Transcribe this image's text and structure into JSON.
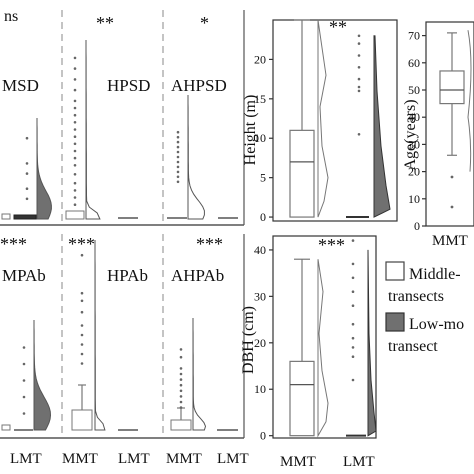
{
  "colors": {
    "mmt": "#ffffff",
    "lmt": "#707070",
    "outline": "#777777",
    "text": "#111111"
  },
  "chart_data": [
    {
      "panel": "MSD",
      "type": "violin-box",
      "significance": "ns",
      "partial": true,
      "xticks": [],
      "mmt_points": [],
      "lmt_points": [
        0.2,
        0.3,
        0.45,
        0.55,
        0.8
      ]
    },
    {
      "panel": "HPSD",
      "type": "violin-box",
      "significance": "**",
      "xticks": [],
      "mmt_points": [
        0.08,
        0.12,
        0.16,
        0.2,
        0.25,
        0.3,
        0.34,
        0.38,
        0.42,
        0.46,
        0.5,
        0.54,
        0.58,
        0.62,
        0.66,
        0.72,
        0.78,
        0.84,
        0.9
      ],
      "lmt_points": []
    },
    {
      "panel": "AHPSD",
      "type": "violin-box",
      "significance": "*",
      "xticks": [],
      "mmt_points": [
        0.3,
        0.34,
        0.38,
        0.42,
        0.46,
        0.5,
        0.54,
        0.58,
        0.62,
        0.66,
        0.7
      ],
      "lmt_points": []
    },
    {
      "panel": "Height",
      "type": "violin-box",
      "significance": "**",
      "ylabel": "Height (m)",
      "yticks": [
        0,
        5,
        10,
        15,
        20
      ],
      "ylim": [
        -0.5,
        25
      ],
      "xticks": [],
      "mmt_box": {
        "min": 0,
        "q1": 0,
        "median": 7,
        "q3": 11,
        "max": 25
      },
      "lmt_box": {
        "min": 0,
        "q1": 0,
        "median": 0,
        "q3": 0,
        "max": 0
      },
      "lmt_points": [
        23,
        22,
        20.5,
        19,
        17.5,
        16.5,
        16,
        10.5
      ]
    },
    {
      "panel": "Age",
      "type": "boxplot",
      "partial": true,
      "ylabel": "Age(years)",
      "yticks": [
        0,
        10,
        20,
        30,
        40,
        50,
        60,
        70
      ],
      "ylim": [
        0,
        75
      ],
      "xticks": [
        "MMT"
      ],
      "mmt_box": {
        "min": 26,
        "q1": 45,
        "median": 50,
        "q3": 57,
        "max": 71
      },
      "outliers": [
        18,
        7
      ]
    },
    {
      "panel": "MPAb",
      "type": "violin-box",
      "significance": "***",
      "partial": true,
      "xticks": [
        "LMT"
      ],
      "mmt_points": [],
      "lmt_points": [
        0.15,
        0.3,
        0.45,
        0.6,
        0.75
      ]
    },
    {
      "panel": "HPAb",
      "type": "violin-box",
      "significance": "***",
      "xticks": [
        "MMT",
        "LMT"
      ],
      "mmt_points": [
        0.35,
        0.4,
        0.45,
        0.5,
        0.55,
        0.62,
        0.68,
        0.72,
        0.92
      ],
      "lmt_points": []
    },
    {
      "panel": "AHPAb",
      "type": "violin-box",
      "significance": "***",
      "xticks": [
        "MMT",
        "LMT"
      ],
      "mmt_points": [
        0.2,
        0.25,
        0.3,
        0.35,
        0.4,
        0.45,
        0.5,
        0.55,
        0.65,
        0.72
      ],
      "lmt_points": []
    },
    {
      "panel": "DBH",
      "type": "violin-box",
      "significance": "***",
      "ylabel": "DBH (cm)",
      "yticks": [
        0,
        10,
        20,
        30,
        40
      ],
      "ylim": [
        -0.5,
        43
      ],
      "xticks": [
        "MMT",
        "LMT"
      ],
      "mmt_box": {
        "min": 0,
        "q1": 0,
        "median": 11,
        "q3": 16,
        "max": 38
      },
      "lmt_box": {
        "min": 0,
        "q1": 0,
        "median": 0,
        "q3": 0,
        "max": 0
      },
      "lmt_points": [
        42,
        37,
        34,
        31,
        28,
        24,
        21,
        19,
        17,
        12
      ]
    }
  ],
  "legend": [
    {
      "label_lines": [
        "Middle-",
        "transects"
      ],
      "fill": "#ffffff"
    },
    {
      "label_lines": [
        "Low-mo",
        "transect"
      ],
      "fill": "#707070"
    }
  ]
}
